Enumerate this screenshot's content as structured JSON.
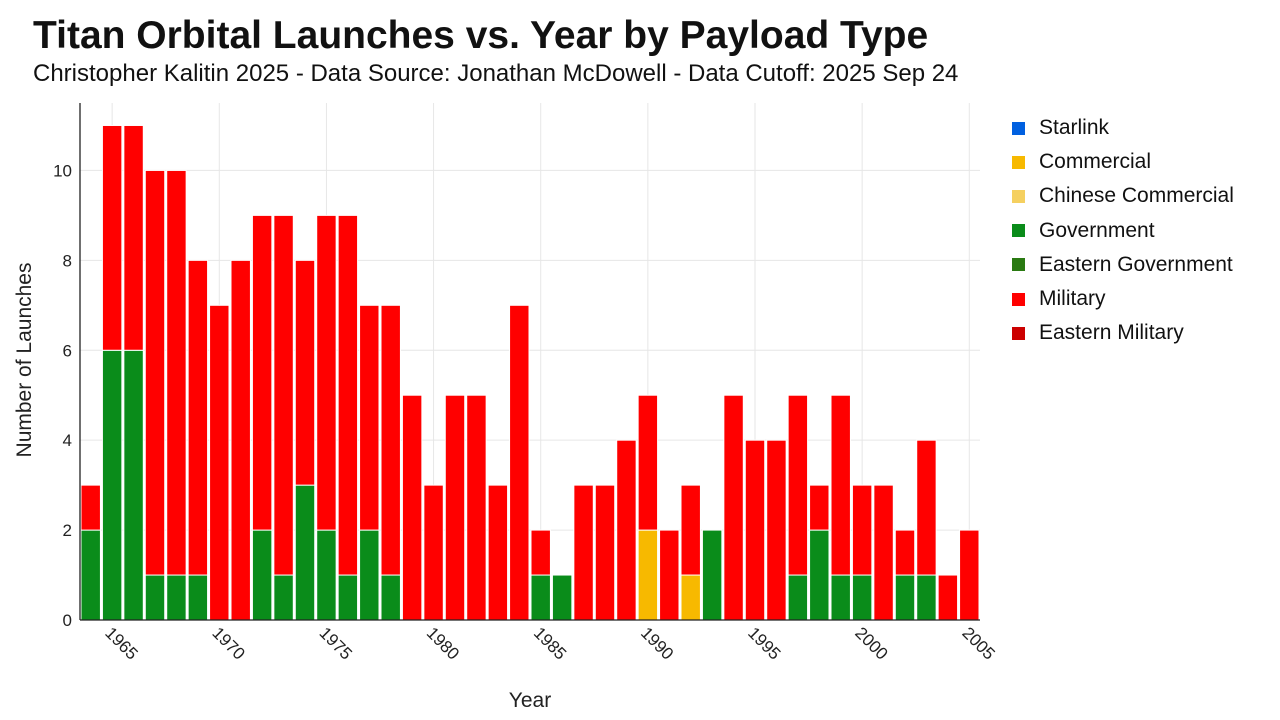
{
  "chart_data": {
    "type": "bar",
    "stacked": true,
    "title": "Titan Orbital Launches vs. Year by Payload Type",
    "subtitle": "Christopher Kalitin 2025 - Data Source: Jonathan McDowell - Data Cutoff: 2025 Sep 24",
    "xlabel": "Year",
    "ylabel": "Number of Launches",
    "xlim": [
      1963.5,
      2005.5
    ],
    "ylim": [
      0,
      11.5
    ],
    "xticks": [
      1965,
      1970,
      1975,
      1980,
      1985,
      1990,
      1995,
      2000,
      2005
    ],
    "yticks": [
      0,
      2,
      4,
      6,
      8,
      10
    ],
    "grid": true,
    "legend_position": "right",
    "x": [
      1964,
      1965,
      1966,
      1967,
      1968,
      1969,
      1970,
      1971,
      1972,
      1973,
      1974,
      1975,
      1976,
      1977,
      1978,
      1979,
      1980,
      1981,
      1982,
      1983,
      1984,
      1985,
      1986,
      1987,
      1988,
      1989,
      1990,
      1991,
      1992,
      1993,
      1994,
      1995,
      1996,
      1997,
      1998,
      1999,
      2000,
      2001,
      2002,
      2003,
      2004,
      2005
    ],
    "series": [
      {
        "name": "Starlink",
        "color": "#0060e0",
        "values": [
          0,
          0,
          0,
          0,
          0,
          0,
          0,
          0,
          0,
          0,
          0,
          0,
          0,
          0,
          0,
          0,
          0,
          0,
          0,
          0,
          0,
          0,
          0,
          0,
          0,
          0,
          0,
          0,
          0,
          0,
          0,
          0,
          0,
          0,
          0,
          0,
          0,
          0,
          0,
          0,
          0,
          0
        ]
      },
      {
        "name": "Commercial",
        "color": "#f7b900",
        "values": [
          0,
          0,
          0,
          0,
          0,
          0,
          0,
          0,
          0,
          0,
          0,
          0,
          0,
          0,
          0,
          0,
          0,
          0,
          0,
          0,
          0,
          0,
          0,
          0,
          0,
          0,
          2,
          0,
          1,
          0,
          0,
          0,
          0,
          0,
          0,
          0,
          0,
          0,
          0,
          0,
          0,
          0
        ]
      },
      {
        "name": "Chinese Commercial",
        "color": "#f5d060",
        "values": [
          0,
          0,
          0,
          0,
          0,
          0,
          0,
          0,
          0,
          0,
          0,
          0,
          0,
          0,
          0,
          0,
          0,
          0,
          0,
          0,
          0,
          0,
          0,
          0,
          0,
          0,
          0,
          0,
          0,
          0,
          0,
          0,
          0,
          0,
          0,
          0,
          0,
          0,
          0,
          0,
          0,
          0
        ]
      },
      {
        "name": "Government",
        "color": "#0a8c1a",
        "values": [
          2,
          6,
          6,
          1,
          1,
          1,
          0,
          0,
          2,
          1,
          3,
          2,
          1,
          2,
          1,
          0,
          0,
          0,
          0,
          0,
          0,
          1,
          1,
          0,
          0,
          0,
          0,
          0,
          0,
          2,
          0,
          0,
          0,
          1,
          2,
          1,
          1,
          0,
          1,
          1,
          0,
          0
        ]
      },
      {
        "name": "Eastern Government",
        "color": "#2a7a12",
        "values": [
          0,
          0,
          0,
          0,
          0,
          0,
          0,
          0,
          0,
          0,
          0,
          0,
          0,
          0,
          0,
          0,
          0,
          0,
          0,
          0,
          0,
          0,
          0,
          0,
          0,
          0,
          0,
          0,
          0,
          0,
          0,
          0,
          0,
          0,
          0,
          0,
          0,
          0,
          0,
          0,
          0,
          0
        ]
      },
      {
        "name": "Military",
        "color": "#ff0000",
        "values": [
          1,
          5,
          5,
          9,
          9,
          7,
          7,
          8,
          7,
          8,
          5,
          7,
          8,
          5,
          6,
          5,
          3,
          5,
          5,
          3,
          7,
          1,
          0,
          3,
          3,
          4,
          3,
          2,
          2,
          0,
          5,
          4,
          4,
          4,
          1,
          4,
          2,
          3,
          1,
          3,
          1,
          2
        ]
      },
      {
        "name": "Eastern Military",
        "color": "#cc0000",
        "values": [
          0,
          0,
          0,
          0,
          0,
          0,
          0,
          0,
          0,
          0,
          0,
          0,
          0,
          0,
          0,
          0,
          0,
          0,
          0,
          0,
          0,
          0,
          0,
          0,
          0,
          0,
          0,
          0,
          0,
          0,
          0,
          0,
          0,
          0,
          0,
          0,
          0,
          0,
          0,
          0,
          0,
          0
        ]
      }
    ]
  }
}
